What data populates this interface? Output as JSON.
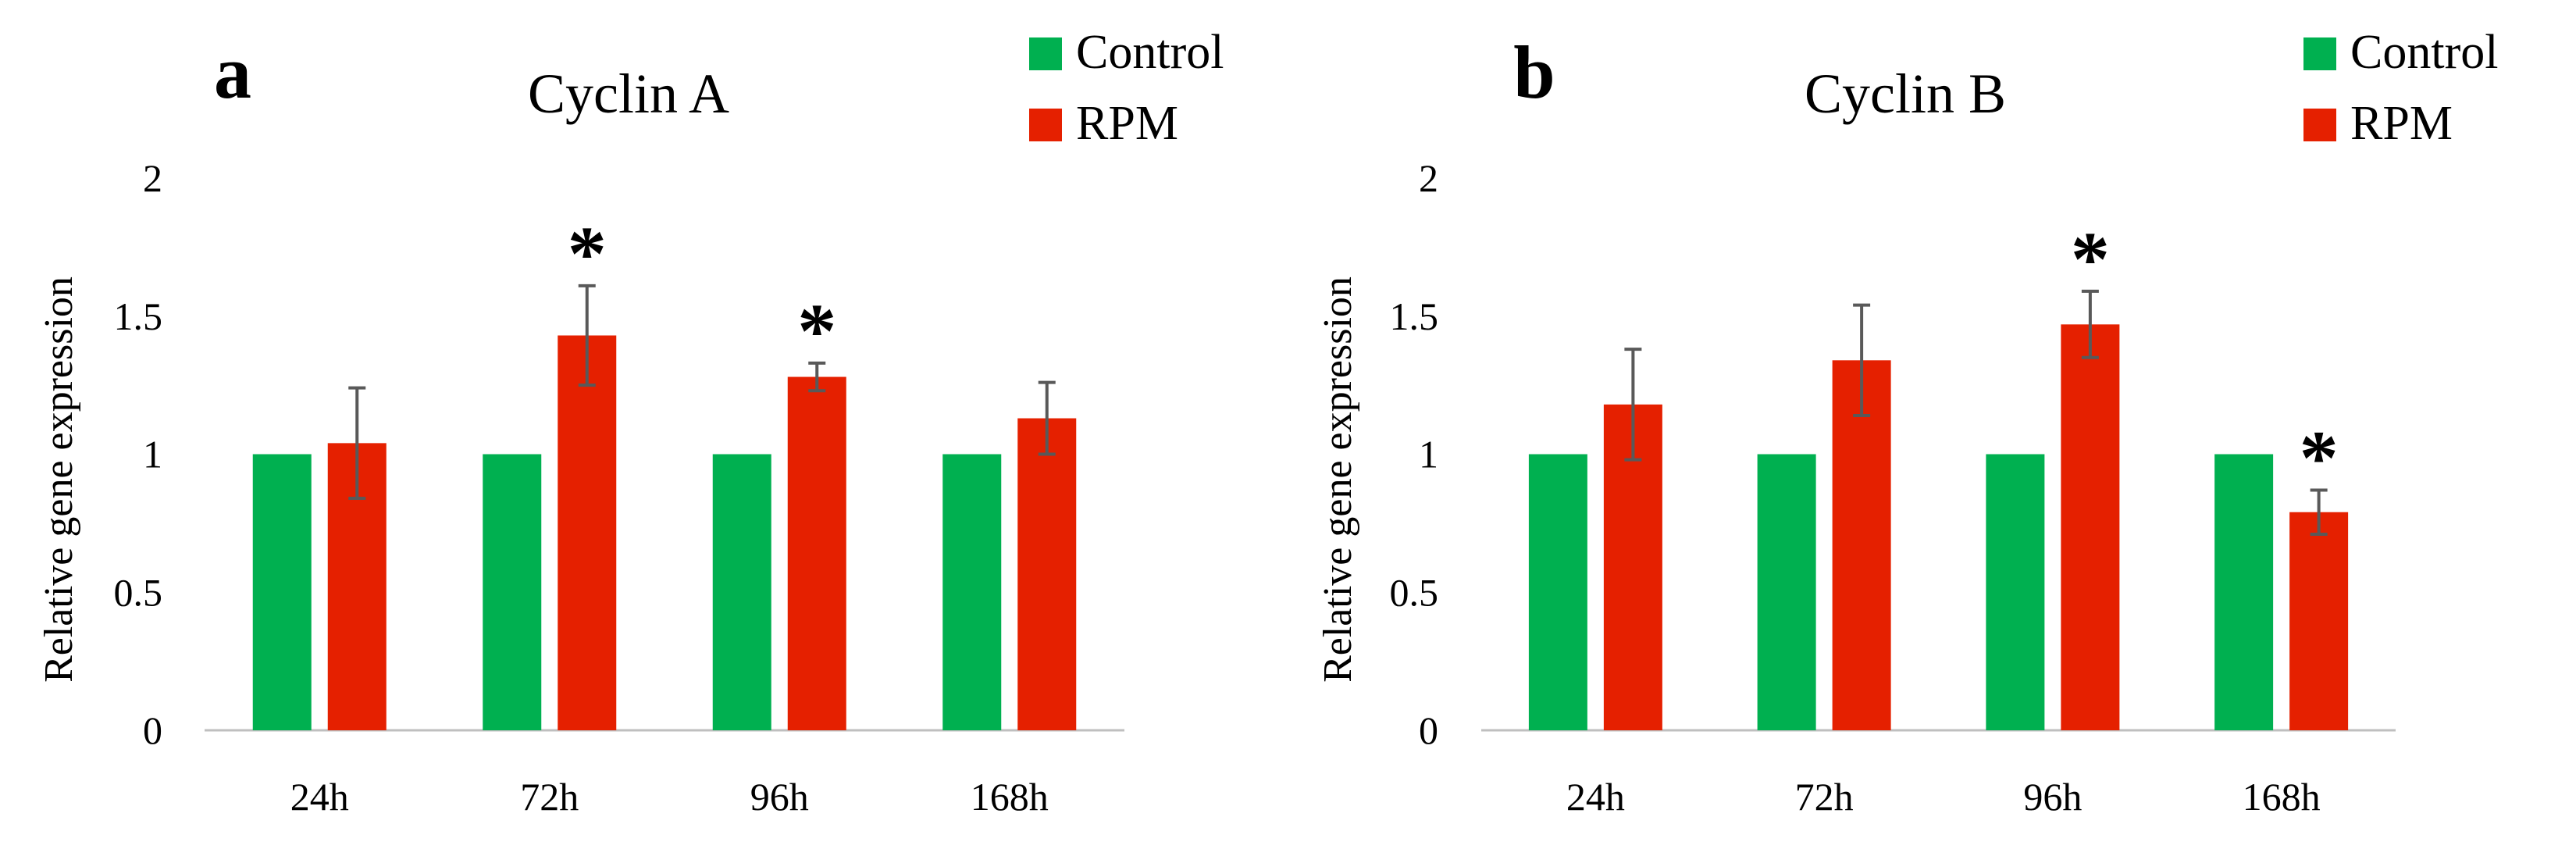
{
  "colors": {
    "control": "#00b050",
    "rpm": "#e52000",
    "axis": "#bfbfbf",
    "error": "#595959"
  },
  "chart_data": [
    {
      "type": "bar",
      "panel_label": "a",
      "title": "Cyclin A",
      "ylabel": "Relative gene expression",
      "xlabel": "",
      "categories": [
        "24h",
        "72h",
        "96h",
        "168h"
      ],
      "ylim": [
        0,
        2
      ],
      "yticks": [
        0,
        0.5,
        1,
        1.5,
        2
      ],
      "ytick_labels": [
        "0",
        "0.5",
        "1",
        "1.5",
        "2"
      ],
      "grid": false,
      "legend": "top-right",
      "series": [
        {
          "name": "Control",
          "values": [
            1,
            1,
            1,
            1
          ],
          "error": [
            0,
            0,
            0,
            0
          ]
        },
        {
          "name": "RPM",
          "values": [
            1.04,
            1.43,
            1.28,
            1.13
          ],
          "error": [
            0.2,
            0.18,
            0.05,
            0.13
          ]
        }
      ],
      "significance": [
        {
          "category": "72h",
          "series": "RPM",
          "label": "*"
        },
        {
          "category": "96h",
          "series": "RPM",
          "label": "*"
        }
      ]
    },
    {
      "type": "bar",
      "panel_label": "b",
      "title": "Cyclin B",
      "ylabel": "Relative gene expression",
      "xlabel": "",
      "categories": [
        "24h",
        "72h",
        "96h",
        "168h"
      ],
      "ylim": [
        0,
        2
      ],
      "yticks": [
        0,
        0.5,
        1,
        1.5,
        2
      ],
      "ytick_labels": [
        "0",
        "0.5",
        "1",
        "1.5",
        "2"
      ],
      "grid": false,
      "legend": "top-right",
      "series": [
        {
          "name": "Control",
          "values": [
            1,
            1,
            1,
            1
          ],
          "error": [
            0,
            0,
            0,
            0
          ]
        },
        {
          "name": "RPM",
          "values": [
            1.18,
            1.34,
            1.47,
            0.79
          ],
          "error": [
            0.2,
            0.2,
            0.12,
            0.08
          ]
        }
      ],
      "significance": [
        {
          "category": "96h",
          "series": "RPM",
          "label": "*"
        },
        {
          "category": "168h",
          "series": "RPM",
          "label": "*"
        }
      ]
    }
  ]
}
